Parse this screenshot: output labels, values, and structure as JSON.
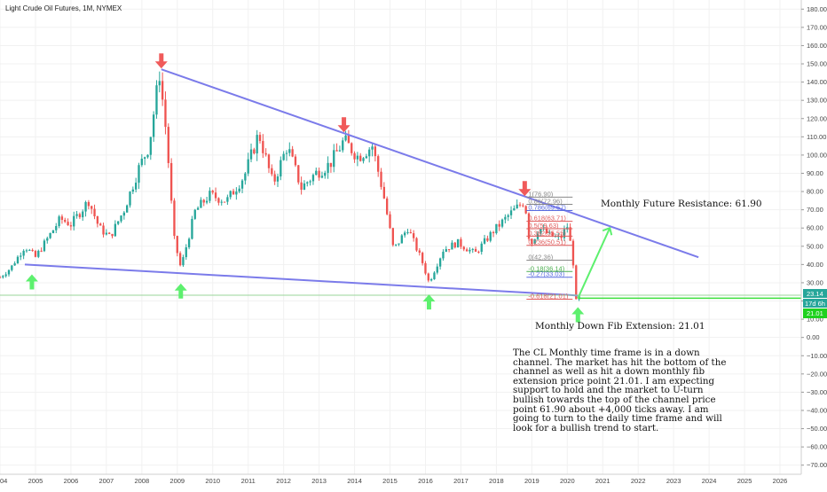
{
  "symbol_title": "Light Crude Oil Futures, 1M, NYMEX",
  "annotations": {
    "resistance": "Monthly Future Resistance: 61.90",
    "fib_extension": "Monthly Down Fib Extension: 21.01",
    "description": "The CL Monthly time frame is in a down channel. The market has hit the bottom of the channel as  well as hit a down monthly fib extension price point 21.01. I am expecting support to hold and the market to U-turn bullish towards the top of the channel price point 61.90 about +4,000 ticks away. I am going to turn to the daily time frame and will look for a bullish trend to start."
  },
  "price_badges": {
    "last_price": "23.14",
    "countdown": "17d 6h",
    "level": "21.01"
  },
  "colors": {
    "up": "#26a69a",
    "down": "#ef5350",
    "channel": "#7b7bea",
    "bullish_arrow": "#5df06e",
    "bearish_arrow": "#f05a5a",
    "hline": "#9ad59a"
  },
  "chart_data": {
    "type": "candlestick",
    "title": "Light Crude Oil Futures, 1M, NYMEX",
    "ylim": [
      -75,
      185
    ],
    "y_ticks": [
      180,
      170,
      160,
      150,
      140,
      130,
      120,
      110,
      100,
      90,
      80,
      70,
      60,
      50,
      40,
      30,
      20,
      10,
      0,
      -10,
      -20,
      -30,
      -40,
      -50,
      -60,
      -70
    ],
    "y_tick_labels": [
      "180.00",
      "170.00",
      "160.00",
      "150.00",
      "140.00",
      "130.00",
      "120.00",
      "110.00",
      "100.00",
      "90.00",
      "80.00",
      "70.00",
      "60.00",
      "50.00",
      "40.00",
      "30.00",
      "20.00",
      "10.00",
      "0.00",
      "−10.00",
      "−20.00",
      "−30.00",
      "−40.00",
      "−50.00",
      "−60.00",
      "−70.00"
    ],
    "x_range": [
      2004.0,
      2026.6
    ],
    "x_ticks": [
      "2004",
      "2005",
      "2006",
      "2007",
      "2008",
      "2009",
      "2010",
      "2011",
      "2012",
      "2013",
      "2014",
      "2015",
      "2016",
      "2017",
      "2018",
      "2019",
      "2020",
      "2021",
      "2022",
      "2023",
      "2024",
      "2025",
      "2026"
    ],
    "series": [
      {
        "year": 2004.0,
        "price": 33
      },
      {
        "year": 2004.3,
        "price": 38
      },
      {
        "year": 2004.7,
        "price": 50
      },
      {
        "year": 2005.0,
        "price": 44
      },
      {
        "year": 2005.3,
        "price": 53
      },
      {
        "year": 2005.7,
        "price": 65
      },
      {
        "year": 2006.0,
        "price": 62
      },
      {
        "year": 2006.5,
        "price": 75
      },
      {
        "year": 2006.8,
        "price": 60
      },
      {
        "year": 2007.1,
        "price": 55
      },
      {
        "year": 2007.5,
        "price": 70
      },
      {
        "year": 2007.9,
        "price": 92
      },
      {
        "year": 2008.2,
        "price": 105
      },
      {
        "year": 2008.5,
        "price": 145
      },
      {
        "year": 2008.7,
        "price": 110
      },
      {
        "year": 2008.9,
        "price": 55
      },
      {
        "year": 2009.1,
        "price": 38
      },
      {
        "year": 2009.5,
        "price": 69
      },
      {
        "year": 2009.9,
        "price": 78
      },
      {
        "year": 2010.4,
        "price": 75
      },
      {
        "year": 2010.9,
        "price": 89
      },
      {
        "year": 2011.3,
        "price": 112
      },
      {
        "year": 2011.7,
        "price": 84
      },
      {
        "year": 2012.1,
        "price": 105
      },
      {
        "year": 2012.5,
        "price": 82
      },
      {
        "year": 2012.9,
        "price": 90
      },
      {
        "year": 2013.3,
        "price": 95
      },
      {
        "year": 2013.7,
        "price": 108
      },
      {
        "year": 2014.1,
        "price": 99
      },
      {
        "year": 2014.5,
        "price": 105
      },
      {
        "year": 2014.8,
        "price": 80
      },
      {
        "year": 2015.1,
        "price": 48
      },
      {
        "year": 2015.5,
        "price": 60
      },
      {
        "year": 2015.9,
        "price": 42
      },
      {
        "year": 2016.1,
        "price": 30
      },
      {
        "year": 2016.5,
        "price": 48
      },
      {
        "year": 2016.9,
        "price": 52
      },
      {
        "year": 2017.4,
        "price": 46
      },
      {
        "year": 2017.9,
        "price": 58
      },
      {
        "year": 2018.4,
        "price": 68
      },
      {
        "year": 2018.8,
        "price": 75
      },
      {
        "year": 2018.95,
        "price": 50
      },
      {
        "year": 2019.2,
        "price": 60
      },
      {
        "year": 2019.5,
        "price": 56
      },
      {
        "year": 2019.8,
        "price": 54
      },
      {
        "year": 2020.0,
        "price": 61
      },
      {
        "year": 2020.15,
        "price": 45
      },
      {
        "year": 2020.25,
        "price": 20
      },
      {
        "year": 2020.35,
        "price": 23
      }
    ],
    "channel": {
      "upper": [
        {
          "year": 2008.55,
          "price": 147
        },
        {
          "year": 2023.7,
          "price": 44
        }
      ],
      "lower": [
        {
          "year": 2004.7,
          "price": 40
        },
        {
          "year": 2020.3,
          "price": 23
        }
      ]
    },
    "fib_levels": [
      {
        "label": "1(76.90)",
        "price": 76.9
      },
      {
        "label": "0.86(72.96)",
        "price": 72.96
      },
      {
        "label": "0.786(69.57)",
        "price": 69.57
      },
      {
        "label": "0.618(63.71)",
        "price": 63.71
      },
      {
        "label": "0.5(59.63)",
        "price": 59.63
      },
      {
        "label": "0.382(55.55)",
        "price": 55.55
      },
      {
        "label": "0.236(50.51)",
        "price": 50.51
      },
      {
        "label": "0(42.36)",
        "price": 42.36
      },
      {
        "label": "-0.18(36.14)",
        "price": 36.14
      },
      {
        "label": "-0.27(33.03)",
        "price": 33.03
      },
      {
        "label": "-0.618(21.01)",
        "price": 21.01
      }
    ],
    "horizontal_line": {
      "price": 23.14
    },
    "projection": {
      "from": {
        "year": 2020.3,
        "price": 21.5
      },
      "to": {
        "year": 2021.2,
        "price": 60
      }
    },
    "bearish_markers": [
      {
        "year": 2008.55,
        "price": 147
      },
      {
        "year": 2013.7,
        "price": 112
      },
      {
        "year": 2018.8,
        "price": 77
      }
    ],
    "bullish_markers": [
      {
        "year": 2004.9,
        "price": 38
      },
      {
        "year": 2009.1,
        "price": 33
      },
      {
        "year": 2016.1,
        "price": 27
      },
      {
        "year": 2020.3,
        "price": 20
      }
    ]
  }
}
